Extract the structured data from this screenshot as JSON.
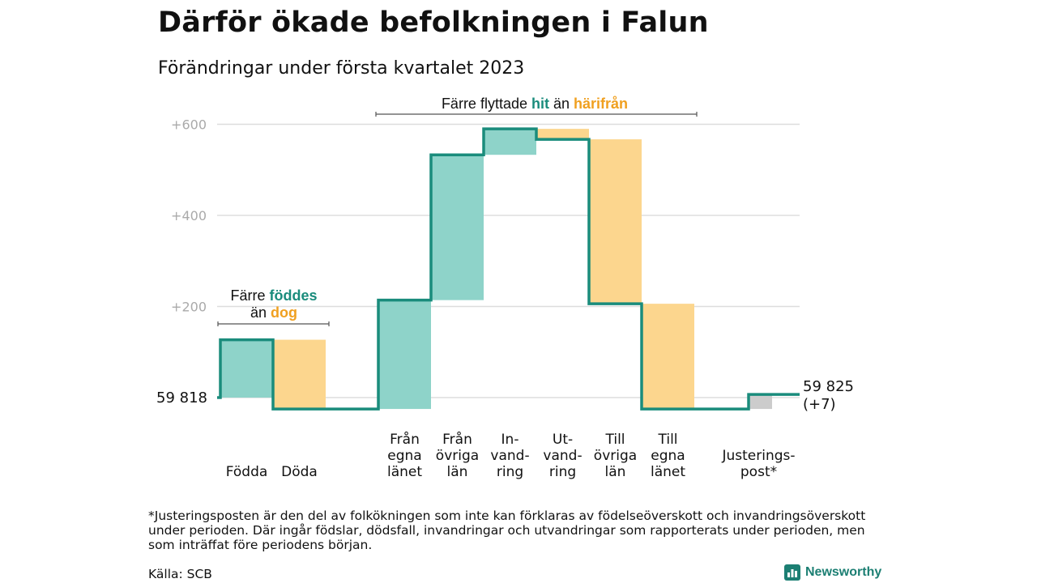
{
  "title": "Därför ökade befolkningen i Falun",
  "subtitle": "Förändringar under första kvartalet 2023",
  "colors": {
    "positive": "#8ed3c9",
    "negative": "#fcd68e",
    "adjust": "#cccccc",
    "line": "#1a8c7c",
    "teal_text": "#1a8c7c",
    "orange_text": "#f0a020",
    "grid": "#dddddd",
    "tick": "#aaaaaa"
  },
  "chart_data": {
    "type": "waterfall",
    "y_axis": {
      "ticks": [
        200,
        400,
        600
      ],
      "tick_labels": [
        "+200",
        "+400",
        "+600"
      ],
      "range": [
        -25,
        620
      ]
    },
    "start": {
      "label": "59 818",
      "value": 0
    },
    "end": {
      "label_line1": "59 825",
      "label_line2": "(+7)",
      "value": 7
    },
    "steps": [
      {
        "label_lines": [
          "Födda"
        ],
        "from": 0,
        "to": 127,
        "kind": "positive"
      },
      {
        "label_lines": [
          "Döda"
        ],
        "from": 127,
        "to": -25,
        "kind": "negative"
      },
      {
        "label_lines": [
          "Från",
          "egna",
          "länet"
        ],
        "from": -25,
        "to": 214,
        "kind": "positive"
      },
      {
        "label_lines": [
          "Från",
          "övriga",
          "län"
        ],
        "from": 214,
        "to": 533,
        "kind": "positive"
      },
      {
        "label_lines": [
          "In-",
          "vand-",
          "ring"
        ],
        "from": 533,
        "to": 590,
        "kind": "positive"
      },
      {
        "label_lines": [
          "Ut-",
          "vand-",
          "ring"
        ],
        "from": 590,
        "to": 567,
        "kind": "negative"
      },
      {
        "label_lines": [
          "Till",
          "övriga",
          "län"
        ],
        "from": 567,
        "to": 206,
        "kind": "negative"
      },
      {
        "label_lines": [
          "Till",
          "egna",
          "länet"
        ],
        "from": 206,
        "to": -25,
        "kind": "negative"
      },
      {
        "label_lines": [
          "Justerings-",
          "post*"
        ],
        "from": -25,
        "to": 7,
        "kind": "adjust"
      }
    ],
    "annotations": [
      {
        "parts": [
          {
            "text": "Färre ",
            "style": "plain"
          },
          {
            "text": "föddes",
            "style": "teal"
          }
        ],
        "parts2": [
          {
            "text": "än ",
            "style": "plain"
          },
          {
            "text": "dog",
            "style": "orange"
          }
        ]
      },
      {
        "parts": [
          {
            "text": "Färre flyttade ",
            "style": "plain"
          },
          {
            "text": "hit",
            "style": "teal"
          },
          {
            "text": " än ",
            "style": "plain"
          },
          {
            "text": "härifrån",
            "style": "orange"
          }
        ]
      }
    ]
  },
  "footnote": "*Justeringsposten är den del av folkökningen som inte kan förklaras av födelseöverskott och invandringsöverskott under perioden. Där ingår födslar, dödsfall, invandringar och utvandringar som rapporterats under perioden, men som inträffat före periodens början.",
  "source": "Källa: SCB",
  "brand": {
    "name": "Newsworthy",
    "logo_icon": "bar-chart-logo-icon"
  }
}
